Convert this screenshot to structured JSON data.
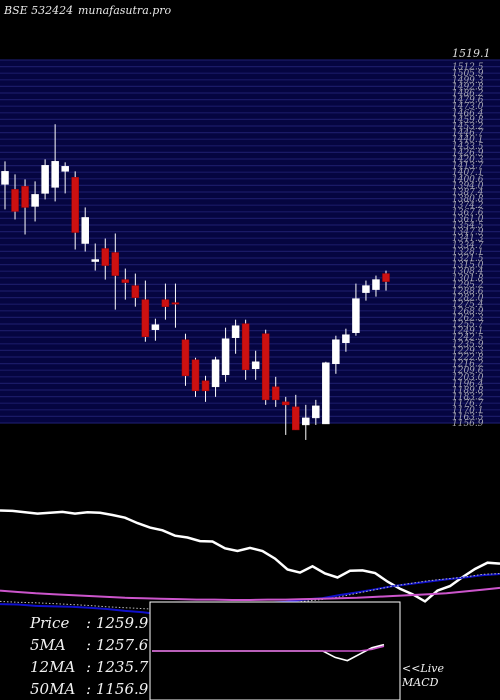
{
  "header": {
    "code": "BSE 532424",
    "site": "munafasutra.pro"
  },
  "chart_data": [
    {
      "type": "candlestick",
      "title": "",
      "ylim": [
        1156.9,
        1519.1
      ],
      "top_tick_label": "1519.1",
      "candles": [
        {
          "o": 1395,
          "h": 1418,
          "l": 1370,
          "c": 1408
        },
        {
          "o": 1390,
          "h": 1405,
          "l": 1360,
          "c": 1368
        },
        {
          "o": 1393,
          "h": 1400,
          "l": 1345,
          "c": 1372
        },
        {
          "o": 1373,
          "h": 1398,
          "l": 1358,
          "c": 1385
        },
        {
          "o": 1386,
          "h": 1420,
          "l": 1380,
          "c": 1414
        },
        {
          "o": 1392,
          "h": 1455,
          "l": 1378,
          "c": 1418
        },
        {
          "o": 1408,
          "h": 1417,
          "l": 1386,
          "c": 1413
        },
        {
          "o": 1402,
          "h": 1408,
          "l": 1330,
          "c": 1347
        },
        {
          "o": 1336,
          "h": 1372,
          "l": 1328,
          "c": 1362
        },
        {
          "o": 1318,
          "h": 1336,
          "l": 1309,
          "c": 1320
        },
        {
          "o": 1331,
          "h": 1341,
          "l": 1300,
          "c": 1314
        },
        {
          "o": 1327,
          "h": 1346,
          "l": 1270,
          "c": 1304
        },
        {
          "o": 1300,
          "h": 1311,
          "l": 1280,
          "c": 1297
        },
        {
          "o": 1294,
          "h": 1306,
          "l": 1273,
          "c": 1282
        },
        {
          "o": 1280,
          "h": 1299,
          "l": 1238,
          "c": 1243
        },
        {
          "o": 1250,
          "h": 1261,
          "l": 1239,
          "c": 1255
        },
        {
          "o": 1280,
          "h": 1296,
          "l": 1260,
          "c": 1273
        },
        {
          "o": 1277,
          "h": 1296,
          "l": 1252,
          "c": 1276
        },
        {
          "o": 1240,
          "h": 1246,
          "l": 1194,
          "c": 1204
        },
        {
          "o": 1220,
          "h": 1222,
          "l": 1183,
          "c": 1189
        },
        {
          "o": 1199,
          "h": 1204,
          "l": 1178,
          "c": 1189
        },
        {
          "o": 1193,
          "h": 1223,
          "l": 1183,
          "c": 1220
        },
        {
          "o": 1205,
          "h": 1252,
          "l": 1198,
          "c": 1241
        },
        {
          "o": 1242,
          "h": 1260,
          "l": 1226,
          "c": 1254
        },
        {
          "o": 1256,
          "h": 1260,
          "l": 1200,
          "c": 1210
        },
        {
          "o": 1211,
          "h": 1229,
          "l": 1200,
          "c": 1218
        },
        {
          "o": 1246,
          "h": 1250,
          "l": 1175,
          "c": 1180
        },
        {
          "o": 1193,
          "h": 1203,
          "l": 1173,
          "c": 1180
        },
        {
          "o": 1178,
          "h": 1183,
          "l": 1145,
          "c": 1175
        },
        {
          "o": 1173,
          "h": 1185,
          "l": 1150,
          "c": 1150
        },
        {
          "o": 1155,
          "h": 1175,
          "l": 1140,
          "c": 1162
        },
        {
          "o": 1162,
          "h": 1180,
          "l": 1155,
          "c": 1174
        },
        {
          "o": 1156,
          "h": 1218,
          "l": 1156,
          "c": 1217
        },
        {
          "o": 1216,
          "h": 1244,
          "l": 1206,
          "c": 1240
        },
        {
          "o": 1237,
          "h": 1251,
          "l": 1228,
          "c": 1245
        },
        {
          "o": 1247,
          "h": 1296,
          "l": 1244,
          "c": 1281
        },
        {
          "o": 1287,
          "h": 1299,
          "l": 1279,
          "c": 1294
        },
        {
          "o": 1290,
          "h": 1304,
          "l": 1283,
          "c": 1300
        },
        {
          "o": 1306,
          "h": 1309,
          "l": 1289,
          "c": 1298
        }
      ]
    },
    {
      "type": "line",
      "title": "",
      "series": [
        {
          "color": "#ffffff",
          "values": [
            5.0,
            4.5,
            3.0,
            1.5,
            2.5,
            3.5,
            1.5,
            3.0,
            2.5,
            0.0,
            -3.0,
            -9.0,
            -14.0,
            -17.0,
            -23.0,
            -25.0,
            -29.0,
            -29.5,
            -37.0,
            -40.0,
            -36.5,
            -40.0,
            -48.5,
            -60.5,
            -64.0,
            -57.0,
            -65.0,
            -69.5,
            -62.0,
            -61.5,
            -64.5,
            -74.0,
            -82.0,
            -88.0,
            -96.0,
            -84.0,
            -79.0,
            -69.0,
            -60.0,
            -53.0,
            -54.0
          ]
        },
        {
          "color": "#1010cc",
          "values": [
            -99.0,
            -99.5,
            -101.0,
            -101.5,
            -102.0,
            -103.0,
            -104.5,
            -106.5,
            -108.0,
            -110.5,
            -107.5,
            -104.5,
            -102.0,
            -100.5,
            -99.0,
            -97.5,
            -96.5,
            -94.0,
            -92.5,
            -89.0,
            -86.0,
            -82.5,
            -79.0,
            -76.5,
            -74.0,
            -71.5,
            -69.5,
            -67.0,
            -65.5
          ]
        },
        {
          "color": "#bbbbbb",
          "values": [
            -96.0,
            -97.0,
            -97.5,
            -98.5,
            -99.5,
            -100.5,
            -102.0,
            -103.0,
            -104.0,
            -105.0,
            -104.0,
            -103.0,
            -102.0,
            -101.0,
            -100.0,
            -99.0,
            -98.0,
            -96.0,
            -94.0,
            -91.0,
            -87.0,
            -83.0,
            -79.0,
            -76.0,
            -73.0,
            -71.0,
            -69.0,
            -66.0,
            -65.0
          ]
        },
        {
          "color": "#cc55cc",
          "values": [
            -84.0,
            -85.5,
            -87.0,
            -88.0,
            -89.0,
            -90.0,
            -91.0,
            -92.0,
            -92.5,
            -93.0,
            -93.5,
            -94.0,
            -94.0,
            -94.5,
            -94.5,
            -94.0,
            -94.0,
            -93.5,
            -93.0,
            -92.5,
            -92.0,
            -91.0,
            -90.0,
            -89.0,
            -88.0,
            -87.0,
            -85.0,
            -83.0,
            -81.0
          ]
        }
      ]
    },
    {
      "type": "line",
      "title": "MACD",
      "series": [
        {
          "color": "#ffffff",
          "values": [
            0,
            0,
            0,
            0,
            0,
            0,
            0,
            0,
            0,
            0,
            0,
            0,
            0,
            0,
            0,
            -4,
            -6,
            -2,
            2,
            4
          ]
        },
        {
          "color": "#cc55cc",
          "values": [
            0,
            0,
            0,
            0,
            0,
            0,
            0,
            0,
            0,
            0,
            0,
            0,
            0,
            0,
            0,
            0,
            0,
            0,
            1,
            3
          ]
        }
      ],
      "marker": "<<Live"
    }
  ],
  "moving_averages": [
    {
      "label": "Price",
      "value": "1259.9"
    },
    {
      "label": "5MA",
      "value": "1257.6"
    },
    {
      "label": "12MA",
      "value": "1235.7"
    },
    {
      "label": "50MA",
      "value": "1156.9"
    }
  ],
  "macd_panel": {
    "live_label": "<<Live",
    "title": "MACD"
  },
  "colors": {
    "up": "#ffffff",
    "down": "#cc1111",
    "grid": "#1a1a66",
    "price_bg": "#050540"
  }
}
